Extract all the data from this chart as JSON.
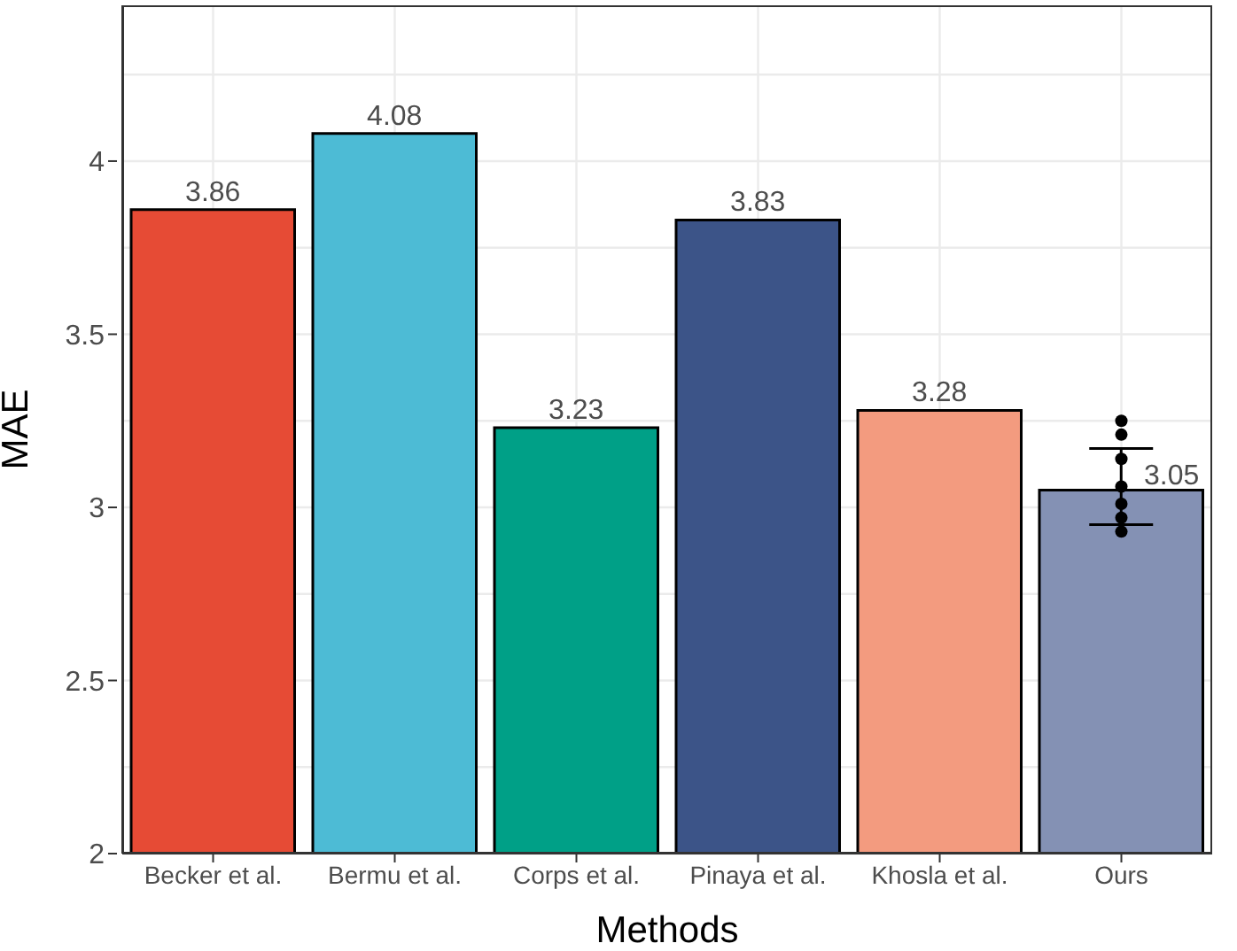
{
  "chart_data": {
    "type": "bar",
    "xlabel": "Methods",
    "ylabel": "MAE",
    "categories": [
      "Becker et al.",
      "Bermu et al.",
      "Corps et al.",
      "Pinaya et al.",
      "Khosla et al.",
      "Ours"
    ],
    "values": [
      3.86,
      4.08,
      3.23,
      3.83,
      3.28,
      3.05
    ],
    "value_labels": [
      "3.86",
      "4.08",
      "3.23",
      "3.83",
      "3.28",
      "3.05"
    ],
    "colors": [
      "#e64b35",
      "#4dbbd5",
      "#00a087",
      "#3c5488",
      "#f39b7f",
      "#8491b4"
    ],
    "errors": [
      null,
      null,
      null,
      null,
      null,
      [
        2.95,
        3.17
      ]
    ],
    "series": [
      {
        "type": "scatter",
        "color": "#000000",
        "x": [
          "Ours",
          "Ours",
          "Ours",
          "Ours",
          "Ours",
          "Ours",
          "Ours"
        ],
        "values": [
          3.25,
          3.21,
          3.14,
          3.06,
          3.01,
          2.97,
          2.93
        ]
      }
    ],
    "ylim": [
      2,
      4.45
    ],
    "yticks": [
      2,
      {
        "value": 2.25,
        "label": null
      },
      2.5,
      {
        "value": 2.75,
        "label": null
      },
      3,
      {
        "value": 3.25,
        "label": null
      },
      3.5,
      {
        "value": 3.75,
        "label": null
      },
      4,
      {
        "value": 4.25,
        "label": null
      }
    ],
    "grid": true
  }
}
